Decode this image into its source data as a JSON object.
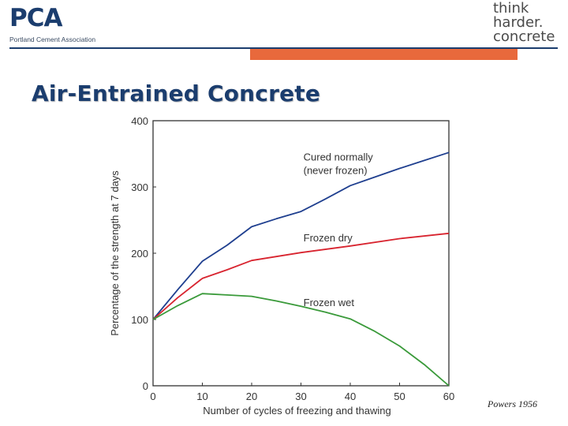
{
  "header": {
    "logo_left": {
      "mark": "PCA",
      "subtitle": "Portland Cement Association"
    },
    "logo_right": {
      "lines": [
        "think",
        "harder.",
        "concrete"
      ]
    },
    "accent_color": "#e8693c",
    "brand_color": "#1b3d6e"
  },
  "title": "Air-Entrained Concrete",
  "credit": "Powers 1956",
  "chart_data": {
    "type": "line",
    "xlabel": "Number of cycles of freezing and thawing",
    "ylabel": "Percentage of the strength at 7 days",
    "xlim": [
      0,
      60
    ],
    "ylim": [
      0,
      400
    ],
    "xticks": [
      0,
      10,
      20,
      30,
      40,
      50,
      60
    ],
    "yticks": [
      0,
      100,
      200,
      300,
      400
    ],
    "grid": false,
    "series": [
      {
        "name": "Cured normally (never frozen)",
        "label_lines": [
          "Cured normally",
          "(never frozen)"
        ],
        "color": "#1f3f8f",
        "x": [
          0,
          5,
          10,
          15,
          20,
          25,
          30,
          35,
          40,
          45,
          50,
          55,
          60
        ],
        "y": [
          100,
          145,
          188,
          212,
          240,
          252,
          263,
          282,
          302,
          315,
          328,
          340,
          352
        ]
      },
      {
        "name": "Frozen dry",
        "label_lines": [
          "Frozen dry"
        ],
        "color": "#d8242f",
        "x": [
          0,
          5,
          10,
          15,
          20,
          30,
          40,
          50,
          60
        ],
        "y": [
          100,
          133,
          162,
          175,
          189,
          201,
          211,
          222,
          230
        ]
      },
      {
        "name": "Frozen wet",
        "label_lines": [
          "Frozen wet"
        ],
        "color": "#3a9a3a",
        "x": [
          0,
          5,
          10,
          15,
          20,
          25,
          30,
          35,
          40,
          45,
          50,
          55,
          60
        ],
        "y": [
          100,
          121,
          139,
          137,
          135,
          128,
          120,
          111,
          101,
          82,
          60,
          32,
          0
        ]
      }
    ]
  }
}
